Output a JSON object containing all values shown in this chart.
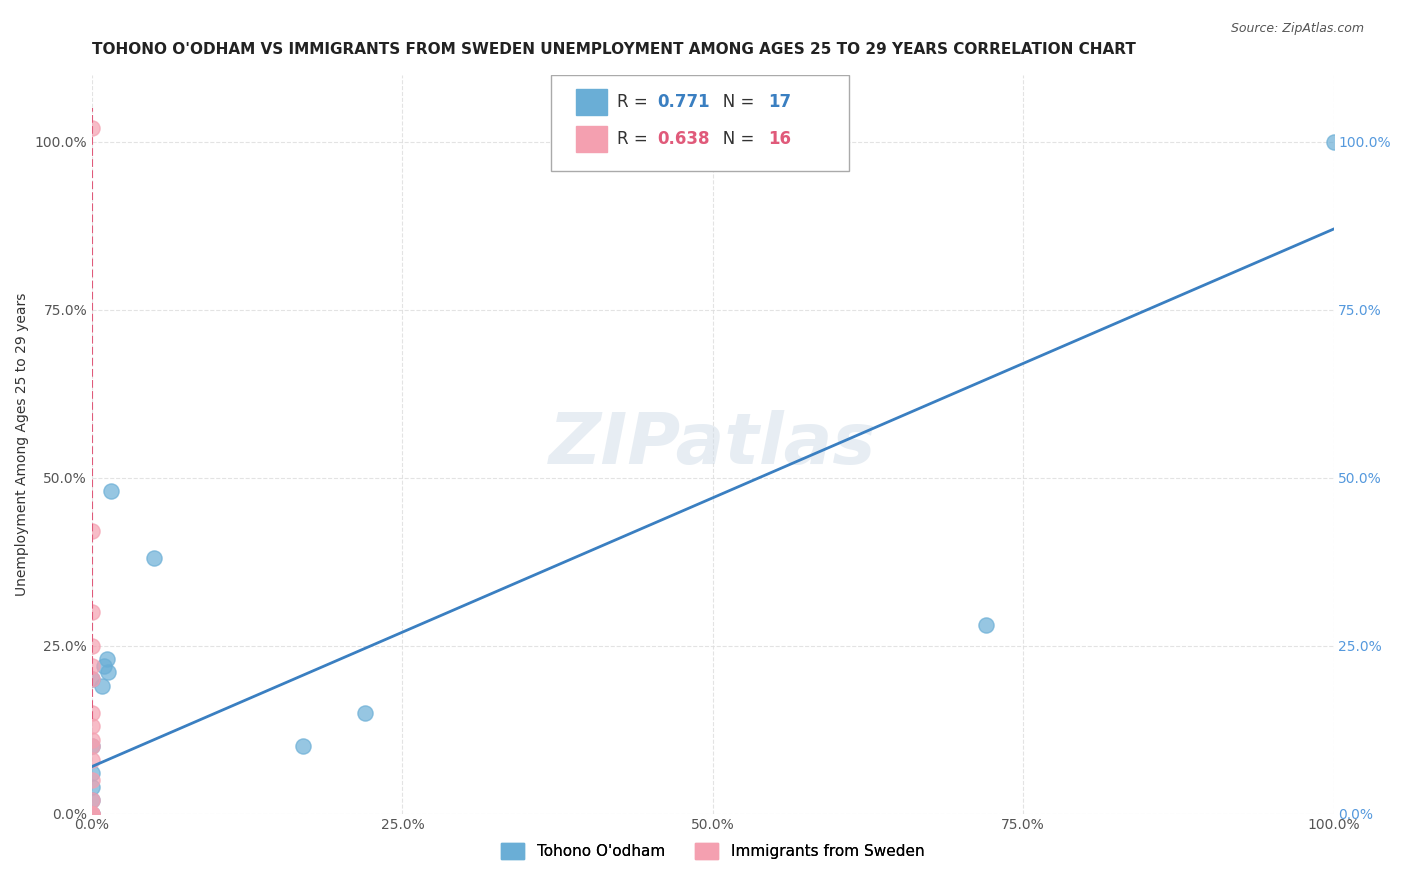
{
  "title": "TOHONO O'ODHAM VS IMMIGRANTS FROM SWEDEN UNEMPLOYMENT AMONG AGES 25 TO 29 YEARS CORRELATION CHART",
  "source": "Source: ZipAtlas.com",
  "xlabel": "",
  "ylabel": "Unemployment Among Ages 25 to 29 years",
  "blue_label": "Tohono O'odham",
  "pink_label": "Immigrants from Sweden",
  "blue_R": 0.771,
  "blue_N": 17,
  "pink_R": 0.638,
  "pink_N": 16,
  "blue_color": "#6aaed6",
  "pink_color": "#f4a0b0",
  "blue_line_color": "#3a7fc1",
  "pink_line_color": "#e05a7a",
  "watermark": "ZIPatlas",
  "xlim": [
    0.0,
    1.0
  ],
  "ylim": [
    0.0,
    1.1
  ],
  "xticks": [
    0.0,
    0.25,
    0.5,
    0.75,
    1.0
  ],
  "yticks": [
    0.0,
    0.25,
    0.5,
    0.75,
    1.0
  ],
  "blue_x": [
    0.0,
    0.0,
    0.0,
    0.0,
    0.0,
    0.0,
    0.0,
    0.008,
    0.01,
    0.012,
    0.013,
    0.015,
    0.05,
    0.17,
    0.22,
    0.72,
    1.0
  ],
  "blue_y": [
    0.0,
    0.0,
    0.02,
    0.04,
    0.06,
    0.1,
    0.2,
    0.19,
    0.22,
    0.23,
    0.21,
    0.48,
    0.38,
    0.1,
    0.15,
    0.28,
    1.0
  ],
  "pink_x": [
    0.0,
    0.0,
    0.0,
    0.0,
    0.0,
    0.0,
    0.0,
    0.0,
    0.0,
    0.0,
    0.0,
    0.0,
    0.0,
    0.0,
    0.0,
    0.0
  ],
  "pink_y": [
    0.0,
    0.0,
    0.0,
    0.02,
    0.05,
    0.08,
    0.1,
    0.11,
    0.13,
    0.15,
    0.2,
    0.22,
    0.25,
    0.3,
    0.42,
    1.02
  ],
  "blue_trend_x": [
    0.0,
    1.0
  ],
  "blue_trend_y": [
    0.07,
    0.87
  ],
  "pink_trend_x": [
    0.0,
    0.0
  ],
  "pink_trend_y": [
    0.14,
    1.05
  ],
  "title_fontsize": 11,
  "label_fontsize": 10,
  "tick_fontsize": 10,
  "legend_fontsize": 11,
  "background_color": "#ffffff",
  "grid_color": "#dddddd"
}
